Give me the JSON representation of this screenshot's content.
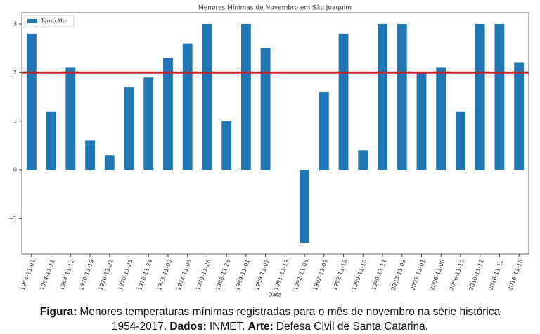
{
  "chart_data": {
    "type": "bar",
    "title": "Menores Mínimas de Novembro em São Joaquim",
    "x_label": "Data",
    "categories": [
      "1964-11-02",
      "1964-11-11",
      "1964-11-12",
      "1970-11-19",
      "1970-11-22",
      "1970-11-23",
      "1970-11-24",
      "1973-11-03",
      "1974-11-06",
      "1979-11-26",
      "1988-11-28",
      "1989-11-01",
      "1989-11-02",
      "1991-11-19",
      "1992-11-05",
      "1992-11-06",
      "1992-11-18",
      "1999-11-10",
      "1999-11-11",
      "2003-11-03",
      "2005-11-01",
      "2006-11-08",
      "2006-11-10",
      "2010-11-11",
      "2016-11-12",
      "2016-11-18"
    ],
    "series": [
      {
        "name": "Temp.Min",
        "color": "#1f77b4",
        "values": [
          2.8,
          1.2,
          2.1,
          0.6,
          0.3,
          1.7,
          1.9,
          2.3,
          2.6,
          3.0,
          1.0,
          3.0,
          2.5,
          0,
          -1.5,
          1.6,
          2.8,
          0.4,
          3.0,
          3.0,
          2.0,
          2.1,
          1.2,
          3.0,
          3.0,
          2.2
        ]
      }
    ],
    "reference_line": {
      "value": 2,
      "color": "#c0282d"
    },
    "ylim": [
      -1.73,
      3.23
    ],
    "yticks": [
      {
        "value": -1,
        "label": "−1"
      },
      0,
      1,
      2,
      3
    ],
    "legend": "upper left"
  },
  "caption": {
    "lines": [
      [
        {
          "text": "Figura:",
          "bold": true
        },
        {
          "text": "Menores temperaturas mínimas registradas para o mês de novembro na série histórica",
          "bold": false
        }
      ],
      [
        {
          "text": "1954-2017.",
          "bold": false
        },
        {
          "text": "Dados:",
          "bold": true
        },
        {
          "text": "INMET.",
          "bold": false
        },
        {
          "text": "Arte:",
          "bold": true
        },
        {
          "text": "Defesa Civil de Santa Catarina.",
          "bold": false
        }
      ]
    ]
  }
}
